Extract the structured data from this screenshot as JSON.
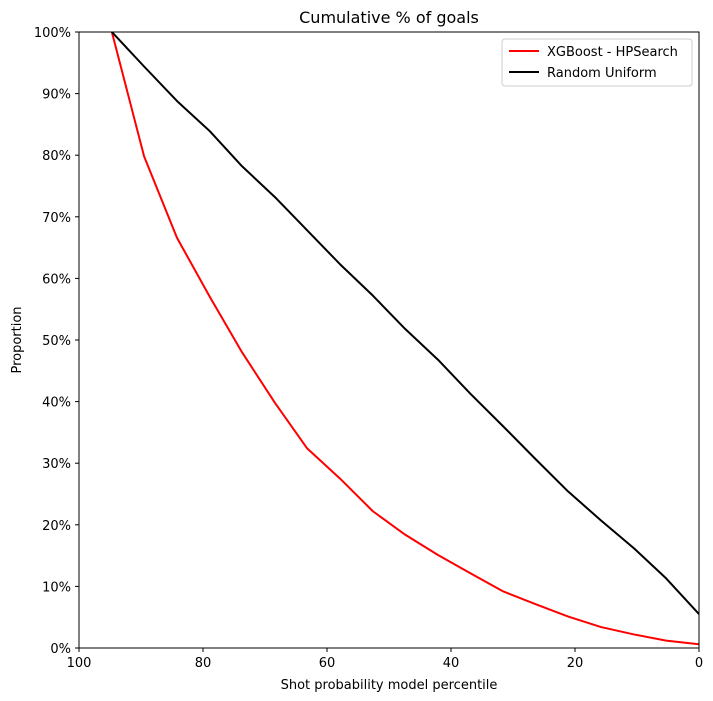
{
  "chart_data": {
    "type": "line",
    "title": "Cumulative % of goals",
    "xlabel": "Shot probability model percentile",
    "ylabel": "Proportion",
    "xlim": [
      100,
      0
    ],
    "ylim": [
      0,
      100
    ],
    "x_reversed": true,
    "xticks": [
      100,
      80,
      60,
      40,
      20,
      0
    ],
    "yticks": [
      0,
      10,
      20,
      30,
      40,
      50,
      60,
      70,
      80,
      90,
      100
    ],
    "ytick_format": "percent",
    "grid": false,
    "legend": "top-right",
    "series": [
      {
        "name": "XGBoost - HPSearch",
        "color": "#ff0000",
        "x": [
          94.7,
          89.5,
          84.2,
          78.9,
          73.7,
          68.4,
          63.2,
          57.9,
          52.6,
          47.4,
          42.1,
          36.8,
          31.6,
          26.3,
          21.1,
          15.8,
          10.5,
          5.3,
          0
        ],
        "y": [
          100,
          79.8,
          66.6,
          57.0,
          48.0,
          39.8,
          32.4,
          27.5,
          22.2,
          18.4,
          15.1,
          12.1,
          9.2,
          7.1,
          5.1,
          3.4,
          2.2,
          1.2,
          0.6
        ]
      },
      {
        "name": "Random Uniform",
        "color": "#000000",
        "x": [
          94.7,
          89.5,
          84.2,
          78.9,
          73.7,
          68.4,
          63.2,
          57.9,
          52.6,
          47.4,
          42.1,
          36.8,
          31.6,
          26.3,
          21.1,
          15.8,
          10.5,
          5.3,
          0
        ],
        "y": [
          100,
          94.4,
          88.8,
          83.9,
          78.2,
          73.2,
          67.8,
          62.3,
          57.2,
          51.8,
          46.8,
          41.2,
          36.0,
          30.6,
          25.4,
          20.7,
          16.2,
          11.3,
          5.5
        ]
      }
    ]
  }
}
